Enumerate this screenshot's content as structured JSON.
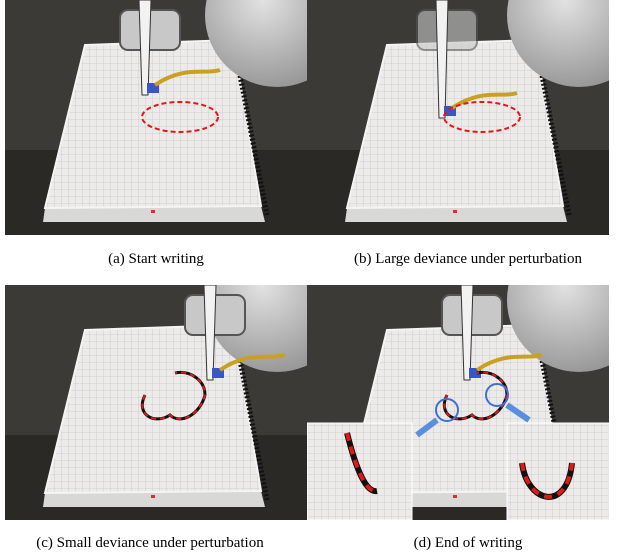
{
  "figure": {
    "panels": [
      {
        "caption": "(a) Start writing"
      },
      {
        "caption": "(b) Large deviance under perturbation"
      },
      {
        "caption": "(c) Small deviance under perturbation"
      },
      {
        "caption": "(d) End of writing"
      }
    ]
  }
}
